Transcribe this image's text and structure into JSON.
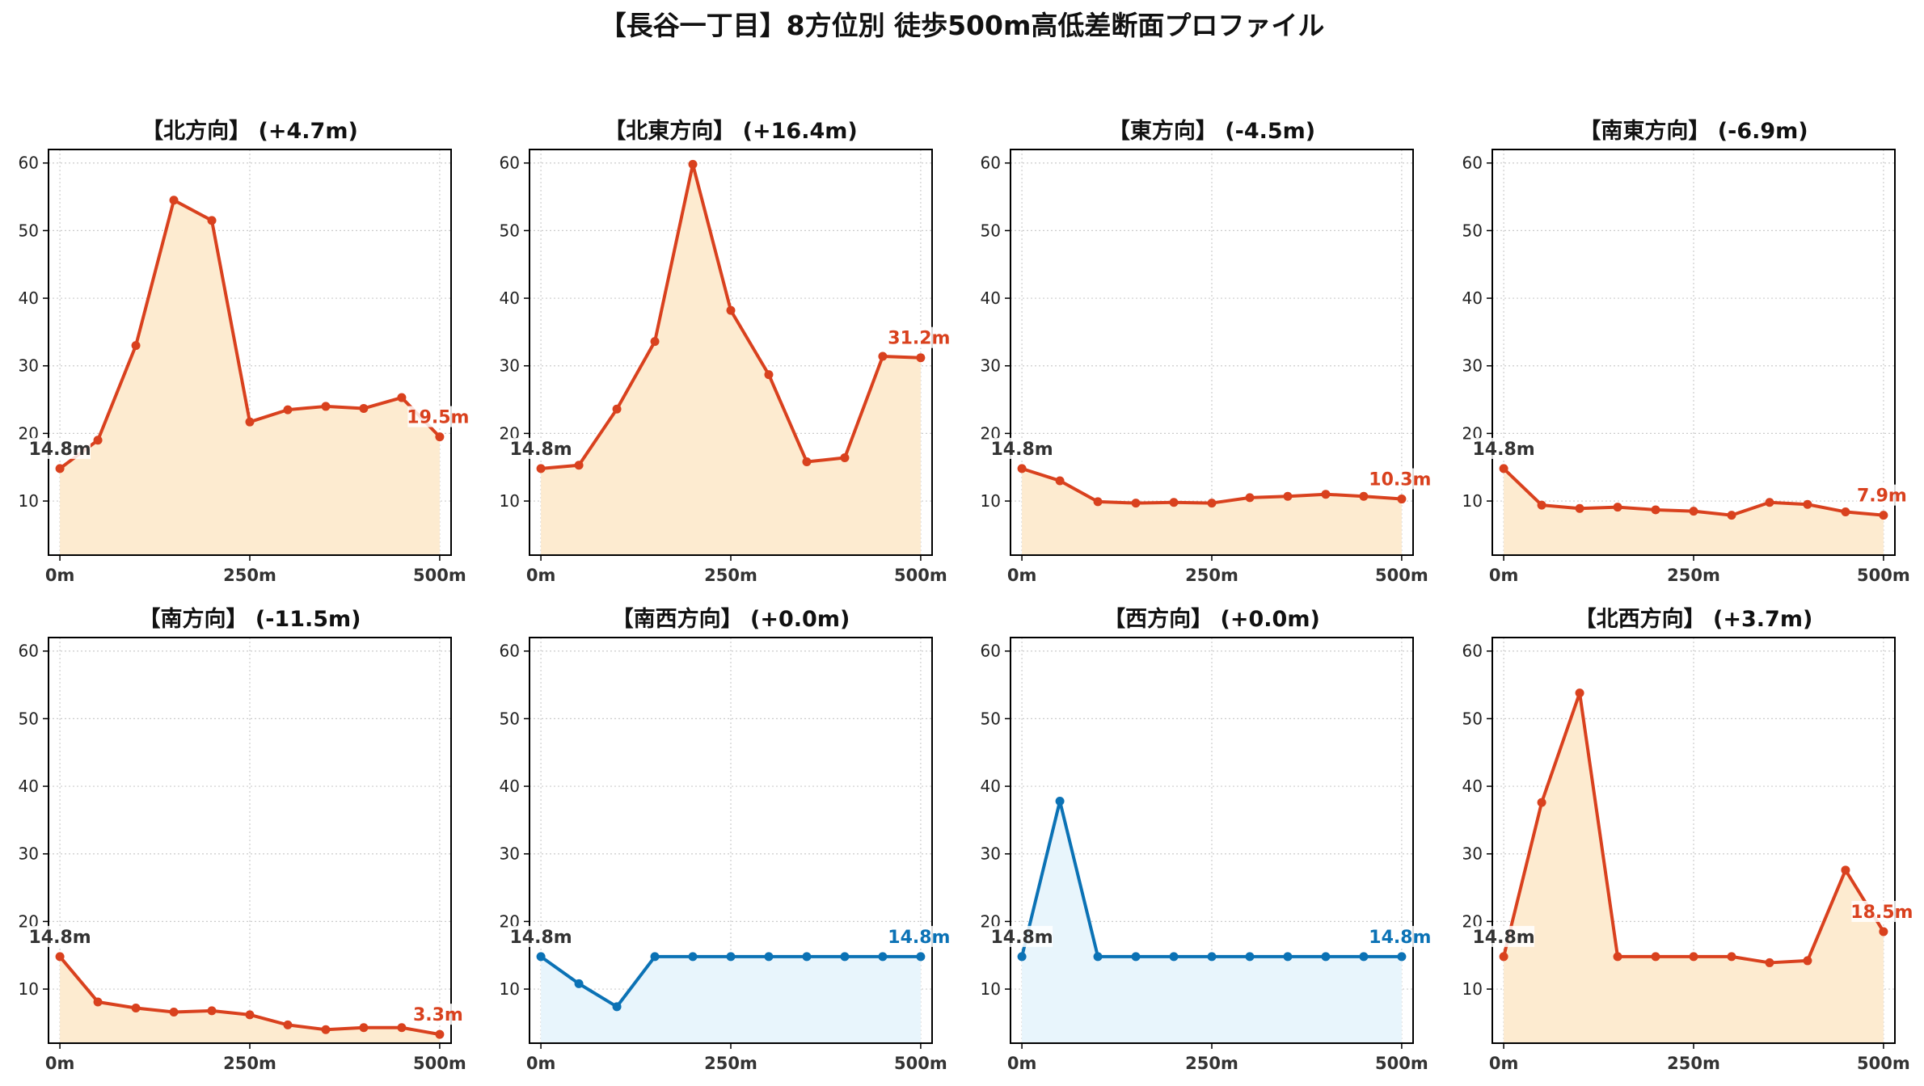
{
  "figure": {
    "title": "【長谷一丁目】8方位別 徒歩500m高低差断面プロファイル",
    "colors": {
      "up_line": "#d9411e",
      "up_fill": "#fdebd0",
      "flat_line": "#0b72b5",
      "flat_fill": "#e8f5fc",
      "start_label": "#333333",
      "grid": "#cccccc",
      "axis": "#000000"
    }
  },
  "chart_data": [
    {
      "type": "area",
      "title": "【北方向】 (+4.7m)",
      "style": "up",
      "x": [
        0,
        50,
        100,
        150,
        200,
        250,
        300,
        350,
        400,
        450,
        500
      ],
      "xticks": [
        0,
        250,
        500
      ],
      "xtick_labels": [
        "0m",
        "250m",
        "500m"
      ],
      "yticks": [
        10,
        20,
        30,
        40,
        50,
        60
      ],
      "ylim": [
        2,
        62
      ],
      "xlim": [
        -15,
        515
      ],
      "grid": true,
      "values": [
        14.8,
        19.0,
        33.0,
        54.5,
        51.5,
        21.7,
        23.5,
        24.0,
        23.7,
        25.3,
        19.5
      ],
      "start_label": "14.8m",
      "end_label": "19.5m"
    },
    {
      "type": "area",
      "title": "【北東方向】 (+16.4m)",
      "style": "up",
      "x": [
        0,
        50,
        100,
        150,
        200,
        250,
        300,
        350,
        400,
        450,
        500
      ],
      "xticks": [
        0,
        250,
        500
      ],
      "xtick_labels": [
        "0m",
        "250m",
        "500m"
      ],
      "yticks": [
        10,
        20,
        30,
        40,
        50,
        60
      ],
      "ylim": [
        2,
        62
      ],
      "xlim": [
        -15,
        515
      ],
      "grid": true,
      "values": [
        14.8,
        15.3,
        23.6,
        33.6,
        59.8,
        38.2,
        28.7,
        15.8,
        16.4,
        31.4,
        31.2
      ],
      "start_label": "14.8m",
      "end_label": "31.2m"
    },
    {
      "type": "area",
      "title": "【東方向】 (-4.5m)",
      "style": "up",
      "x": [
        0,
        50,
        100,
        150,
        200,
        250,
        300,
        350,
        400,
        450,
        500
      ],
      "xticks": [
        0,
        250,
        500
      ],
      "xtick_labels": [
        "0m",
        "250m",
        "500m"
      ],
      "yticks": [
        10,
        20,
        30,
        40,
        50,
        60
      ],
      "ylim": [
        2,
        62
      ],
      "xlim": [
        -15,
        515
      ],
      "grid": true,
      "values": [
        14.8,
        13.0,
        9.9,
        9.7,
        9.8,
        9.7,
        10.5,
        10.7,
        11.0,
        10.7,
        10.3
      ],
      "start_label": "14.8m",
      "end_label": "10.3m"
    },
    {
      "type": "area",
      "title": "【南東方向】 (-6.9m)",
      "style": "up",
      "x": [
        0,
        50,
        100,
        150,
        200,
        250,
        300,
        350,
        400,
        450,
        500
      ],
      "xticks": [
        0,
        250,
        500
      ],
      "xtick_labels": [
        "0m",
        "250m",
        "500m"
      ],
      "yticks": [
        10,
        20,
        30,
        40,
        50,
        60
      ],
      "ylim": [
        2,
        62
      ],
      "xlim": [
        -15,
        515
      ],
      "grid": true,
      "values": [
        14.8,
        9.4,
        8.9,
        9.1,
        8.7,
        8.5,
        7.9,
        9.8,
        9.5,
        8.4,
        7.9
      ],
      "start_label": "14.8m",
      "end_label": "7.9m"
    },
    {
      "type": "area",
      "title": "【南方向】 (-11.5m)",
      "style": "up",
      "x": [
        0,
        50,
        100,
        150,
        200,
        250,
        300,
        350,
        400,
        450,
        500
      ],
      "xticks": [
        0,
        250,
        500
      ],
      "xtick_labels": [
        "0m",
        "250m",
        "500m"
      ],
      "yticks": [
        10,
        20,
        30,
        40,
        50,
        60
      ],
      "ylim": [
        2,
        62
      ],
      "xlim": [
        -15,
        515
      ],
      "grid": true,
      "values": [
        14.8,
        8.1,
        7.2,
        6.6,
        6.8,
        6.2,
        4.7,
        4.0,
        4.3,
        4.3,
        3.3
      ],
      "start_label": "14.8m",
      "end_label": "3.3m"
    },
    {
      "type": "area",
      "title": "【南西方向】 (+0.0m)",
      "style": "flat",
      "x": [
        0,
        50,
        100,
        150,
        200,
        250,
        300,
        350,
        400,
        450,
        500
      ],
      "xticks": [
        0,
        250,
        500
      ],
      "xtick_labels": [
        "0m",
        "250m",
        "500m"
      ],
      "yticks": [
        10,
        20,
        30,
        40,
        50,
        60
      ],
      "ylim": [
        2,
        62
      ],
      "xlim": [
        -15,
        515
      ],
      "grid": true,
      "values": [
        14.8,
        10.8,
        7.4,
        14.8,
        14.8,
        14.8,
        14.8,
        14.8,
        14.8,
        14.8,
        14.8
      ],
      "start_label": "14.8m",
      "end_label": "14.8m"
    },
    {
      "type": "area",
      "title": "【西方向】 (+0.0m)",
      "style": "flat",
      "x": [
        0,
        50,
        100,
        150,
        200,
        250,
        300,
        350,
        400,
        450,
        500
      ],
      "xticks": [
        0,
        250,
        500
      ],
      "xtick_labels": [
        "0m",
        "250m",
        "500m"
      ],
      "yticks": [
        10,
        20,
        30,
        40,
        50,
        60
      ],
      "ylim": [
        2,
        62
      ],
      "xlim": [
        -15,
        515
      ],
      "grid": true,
      "values": [
        14.8,
        37.8,
        14.8,
        14.8,
        14.8,
        14.8,
        14.8,
        14.8,
        14.8,
        14.8,
        14.8
      ],
      "start_label": "14.8m",
      "end_label": "14.8m"
    },
    {
      "type": "area",
      "title": "【北西方向】 (+3.7m)",
      "style": "up",
      "x": [
        0,
        50,
        100,
        150,
        200,
        250,
        300,
        350,
        400,
        450,
        500
      ],
      "xticks": [
        0,
        250,
        500
      ],
      "xtick_labels": [
        "0m",
        "250m",
        "500m"
      ],
      "yticks": [
        10,
        20,
        30,
        40,
        50,
        60
      ],
      "ylim": [
        2,
        62
      ],
      "xlim": [
        -15,
        515
      ],
      "grid": true,
      "values": [
        14.8,
        37.6,
        53.8,
        14.8,
        14.8,
        14.8,
        14.8,
        13.9,
        14.2,
        27.6,
        18.5
      ],
      "start_label": "14.8m",
      "end_label": "18.5m"
    }
  ]
}
